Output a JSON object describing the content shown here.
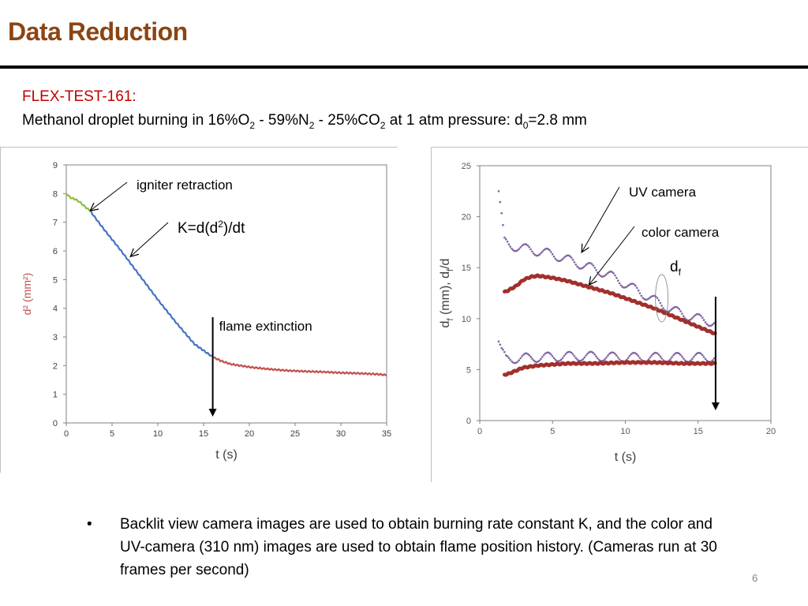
{
  "slide": {
    "title": "Data Reduction",
    "test_id": "FLEX-TEST-161:",
    "desc_prefix": "Methanol droplet burning in  16%O",
    "desc_o2_sub": "2",
    "desc_n2": " - 59%N",
    "desc_n2_sub": "2",
    "desc_co2": " - 25%CO",
    "desc_co2_sub": "2",
    "desc_pressure": " at 1 atm pressure: d",
    "desc_d0_sub": "0",
    "desc_d0": "=2.8 mm",
    "bullet_text": "Backlit view camera images are used to obtain burning rate constant K, and the color and UV-camera (310 nm) images are used to obtain flame position history. (Cameras run at 30 frames per second)",
    "bullet_symbol": "•",
    "page_number": "6"
  },
  "colors": {
    "title": "#8b4513",
    "test_id": "#c00000",
    "igniter_segment": "#8fbc3f",
    "burning_segment": "#4472c4",
    "post_extinction": "#c0504d",
    "uv_camera": "#8064a2",
    "color_camera": "#a0302c"
  },
  "chart_data": [
    {
      "type": "line",
      "xlabel": "t (s)",
      "ylabel": "d² (mm²)",
      "xlim": [
        0,
        35
      ],
      "ylim": [
        0,
        9
      ],
      "x_ticks": [
        0,
        5,
        10,
        15,
        20,
        25,
        30,
        35
      ],
      "y_ticks": [
        0,
        1,
        2,
        3,
        4,
        5,
        6,
        7,
        8,
        9
      ],
      "grid": false,
      "series": [
        {
          "color": "#8fbc3f",
          "x": [
            0,
            0.5,
            1,
            1.5,
            2,
            2.6
          ],
          "y": [
            8.0,
            7.85,
            7.8,
            7.7,
            7.55,
            7.4
          ]
        },
        {
          "color": "#4472c4",
          "x": [
            2.6,
            4,
            6,
            8,
            10,
            12,
            14,
            16
          ],
          "y": [
            7.4,
            6.8,
            6.0,
            5.15,
            4.3,
            3.5,
            2.75,
            2.3
          ]
        },
        {
          "color": "#c0504d",
          "x": [
            16,
            17,
            18,
            19,
            20,
            22,
            24,
            26,
            28,
            30,
            32,
            34,
            35
          ],
          "y": [
            2.3,
            2.15,
            2.05,
            2.0,
            1.95,
            1.88,
            1.83,
            1.8,
            1.78,
            1.75,
            1.73,
            1.7,
            1.67
          ]
        }
      ],
      "annotations": [
        {
          "text": "igniter retraction",
          "x": 2.6,
          "y": 7.4
        },
        {
          "text": "K=d(d",
          "superscript": "2",
          "text_after": ")/dt",
          "x": 7,
          "y": 5.8
        },
        {
          "text": "flame extinction",
          "x": 16,
          "y": 2.3
        }
      ],
      "vertical_arrow_x": 16
    },
    {
      "type": "scatter",
      "xlabel": "t (s)",
      "ylabel": "d",
      "ylabel_sub1": "f",
      "ylabel_mid": " (mm),  d",
      "ylabel_sub2": "f",
      "ylabel_end": "/d",
      "xlim": [
        0,
        20
      ],
      "ylim": [
        0,
        25
      ],
      "x_ticks": [
        0,
        5,
        10,
        15,
        20
      ],
      "y_ticks": [
        0,
        5,
        10,
        15,
        20,
        25
      ],
      "grid": false,
      "series": [
        {
          "color": "#8064a2",
          "x": [
            1.3,
            1.5,
            1.7,
            2,
            3,
            4,
            5,
            6,
            7,
            8,
            9,
            10,
            11,
            12,
            13,
            14,
            15,
            16.2
          ],
          "y": [
            22.5,
            20,
            17.5,
            17.2,
            16.9,
            16.6,
            16.3,
            15.8,
            15.3,
            14.8,
            14.2,
            13.4,
            12.6,
            11.8,
            11.0,
            10.4,
            10.0,
            9.6
          ]
        },
        {
          "color": "#a0302c",
          "x": [
            1.7,
            2,
            2.5,
            3,
            3.5,
            4,
            4.5,
            5,
            6,
            7,
            8,
            9,
            10,
            11,
            12,
            13,
            14,
            15,
            16.2
          ],
          "y": [
            12.6,
            12.8,
            13.2,
            13.8,
            14.1,
            14.2,
            14.1,
            14.0,
            13.7,
            13.3,
            12.9,
            12.5,
            12.0,
            11.5,
            11.0,
            10.4,
            9.8,
            9.2,
            8.5
          ]
        },
        {
          "color": "#8064a2",
          "x": [
            1.3,
            1.5,
            1.8,
            2.5,
            4,
            6,
            8,
            10,
            12,
            14,
            16.2
          ],
          "y": [
            7.8,
            6.8,
            6.0,
            6.1,
            6.2,
            6.3,
            6.3,
            6.2,
            6.2,
            6.2,
            6.2
          ]
        },
        {
          "color": "#a0302c",
          "x": [
            1.7,
            2,
            2.5,
            3,
            4,
            5,
            6,
            8,
            10,
            12,
            14,
            16.2
          ],
          "y": [
            4.5,
            4.6,
            4.9,
            5.2,
            5.4,
            5.5,
            5.6,
            5.6,
            5.7,
            5.7,
            5.6,
            5.6
          ]
        }
      ],
      "annotations": [
        {
          "text": "UV camera",
          "x": 7,
          "y": 16.5
        },
        {
          "text": "color camera",
          "x": 7.5,
          "y": 13.3
        },
        {
          "text": "d",
          "subscript": "f",
          "x": 12.5,
          "y": 12
        }
      ],
      "vertical_arrow_x": 16.2
    }
  ]
}
